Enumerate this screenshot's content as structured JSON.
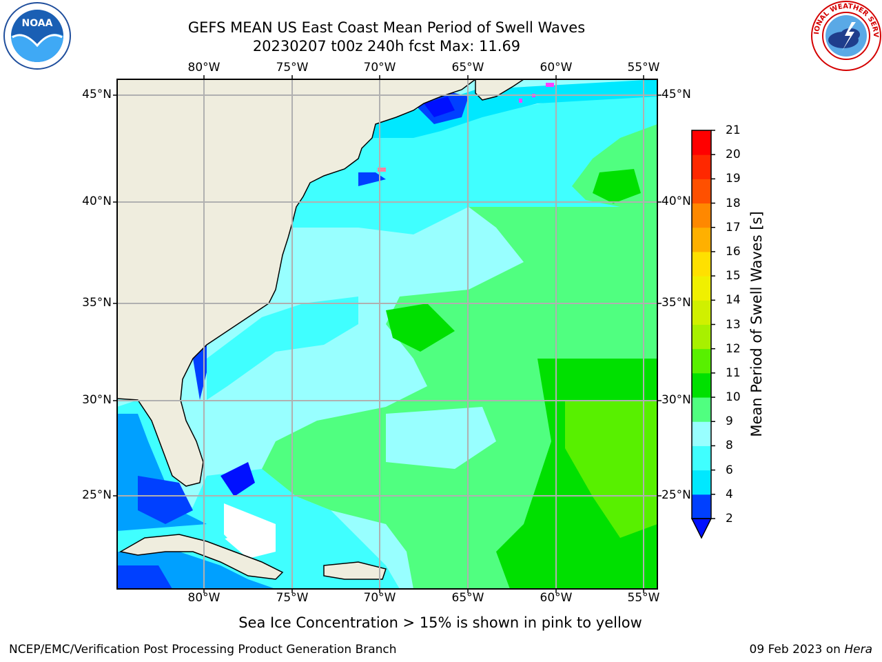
{
  "title": {
    "line1": "GEFS MEAN US East Coast Mean Period of Swell Waves",
    "line2": "20230207 t00z 240h fcst   Max: 11.69"
  },
  "logos": {
    "left": "noaa-logo",
    "left_text": "NOAA",
    "right": "national-weather-service-logo",
    "right_text": "NATIONAL WEATHER SERVICE"
  },
  "map": {
    "lon_labels_top": [
      "80°W",
      "75°W",
      "70°W",
      "65°W",
      "60°W",
      "55°W"
    ],
    "lon_labels_bottom": [
      "80°W",
      "75°W",
      "70°W",
      "65°W",
      "60°W",
      "55°W"
    ],
    "lat_labels_left": [
      "45°N",
      "40°N",
      "35°N",
      "30°N",
      "25°N"
    ],
    "lat_labels_right": [
      "45°N",
      "40°N",
      "35°N",
      "30°N",
      "25°N"
    ],
    "land_color": "#efedde",
    "grid_color": "#b0b0b0",
    "coastline_color": "#000000"
  },
  "colorbar": {
    "title": "Mean Period of Swell Waves [s]",
    "ticks": [
      "2",
      "4",
      "6",
      "8",
      "9",
      "10",
      "11",
      "12",
      "13",
      "14",
      "15",
      "16",
      "17",
      "18",
      "19",
      "20",
      "21"
    ],
    "colors": [
      "#0040ff",
      "#00e8ff",
      "#40ffff",
      "#98ffff",
      "#50ff80",
      "#00e000",
      "#58f000",
      "#a8f000",
      "#d0f000",
      "#f0f000",
      "#ffe000",
      "#ffb000",
      "#ff8800",
      "#ff5000",
      "#ff2800",
      "#ff0000"
    ],
    "extend_color": "#0010ff"
  },
  "chart_data": {
    "type": "heatmap",
    "title": "GEFS MEAN US East Coast Mean Period of Swell Waves",
    "subtitle": "20230207 t00z 240h fcst   Max: 11.69",
    "x_label": "",
    "y_label": "",
    "xlim": [
      "85°W",
      "54.5°W"
    ],
    "ylim": [
      "20.5°N",
      "45.9°N"
    ],
    "max_value": 11.69,
    "units": "s",
    "grid": true
  },
  "footer": {
    "ice_note": "Sea Ice Concentration > 15% is shown in pink to yellow",
    "left": "NCEP/EMC/Verification Post Processing Product Generation Branch",
    "right_date": "09 Feb 2023 on ",
    "right_host": "Hera"
  }
}
